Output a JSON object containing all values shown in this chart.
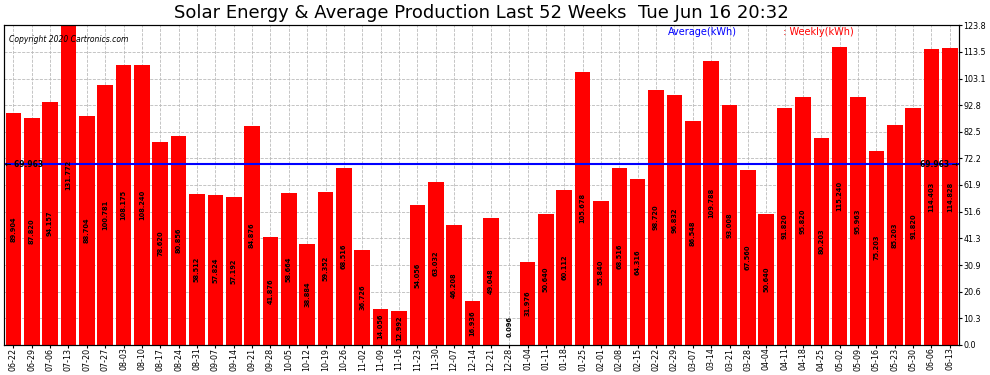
{
  "title": "Solar Energy & Average Production Last 52 Weeks  Tue Jun 16 20:32",
  "copyright": "Copyright 2020 Cartronics.com",
  "average_label": "Average(kWh)",
  "weekly_label": "Weekly(kWh)",
  "average_value": 69.963,
  "average_line_color": "#0000ff",
  "bar_color": "#ff0000",
  "background_color": "#ffffff",
  "grid_color": "#bbbbbb",
  "right_yticks": [
    0.0,
    10.3,
    20.6,
    30.9,
    41.3,
    51.6,
    61.9,
    72.2,
    82.5,
    92.8,
    103.1,
    113.5,
    123.8
  ],
  "categories": [
    "06-22",
    "06-29",
    "07-06",
    "07-13",
    "07-20",
    "07-27",
    "08-03",
    "08-10",
    "08-17",
    "08-24",
    "08-31",
    "09-07",
    "09-14",
    "09-21",
    "09-28",
    "10-05",
    "10-12",
    "10-19",
    "10-26",
    "11-02",
    "11-09",
    "11-16",
    "11-23",
    "11-30",
    "12-07",
    "12-14",
    "12-21",
    "12-28",
    "01-04",
    "01-11",
    "01-18",
    "01-25",
    "02-01",
    "02-08",
    "02-15",
    "02-22",
    "02-29",
    "03-07",
    "03-14",
    "03-21",
    "03-28",
    "04-04",
    "04-11",
    "04-18",
    "04-25",
    "05-02",
    "05-09",
    "05-16",
    "05-23",
    "05-30",
    "06-06",
    "06-13"
  ],
  "values": [
    89.904,
    87.82,
    94.157,
    131.772,
    88.704,
    100.781,
    108.175,
    108.24,
    78.62,
    80.856,
    58.512,
    57.824,
    57.192,
    84.876,
    41.876,
    58.664,
    38.884,
    59.352,
    68.516,
    36.726,
    14.056,
    12.992,
    54.056,
    63.032,
    46.208,
    16.936,
    49.048,
    0.096,
    31.976,
    50.64,
    60.112,
    105.678,
    55.84,
    68.516,
    64.316,
    98.72,
    96.832,
    86.548,
    109.788,
    93.008,
    67.56,
    50.64,
    91.82,
    95.82,
    80.203,
    115.24,
    95.963,
    75.203,
    85.203,
    91.82,
    114.403,
    114.828
  ],
  "bar_value_labels": [
    "89.904",
    "87.820",
    "94.157",
    "131.772",
    "88.704",
    "100.781",
    "108.175",
    "108.240",
    "78.620",
    "80.856",
    "58.512",
    "57.824",
    "57.192",
    "84.876",
    "41.876",
    "58.664",
    "38.884",
    "59.352",
    "68.516",
    "36.726",
    "14.056",
    "12.992",
    "54.056",
    "63.032",
    "46.208",
    "16.936",
    "49.048",
    "0.096",
    "31.976",
    "50.640",
    "60.112",
    "105.678",
    "55.840",
    "68.516",
    "64.316",
    "98.720",
    "96.832",
    "86.548",
    "109.788",
    "93.008",
    "67.560",
    "50.640",
    "91.820",
    "95.820",
    "80.203",
    "115.240",
    "95.963",
    "75.203",
    "85.203",
    "91.820",
    "114.403",
    "114.828"
  ],
  "title_fontsize": 13,
  "tick_fontsize": 5.8,
  "value_fontsize": 4.8,
  "ymax": 123.8
}
